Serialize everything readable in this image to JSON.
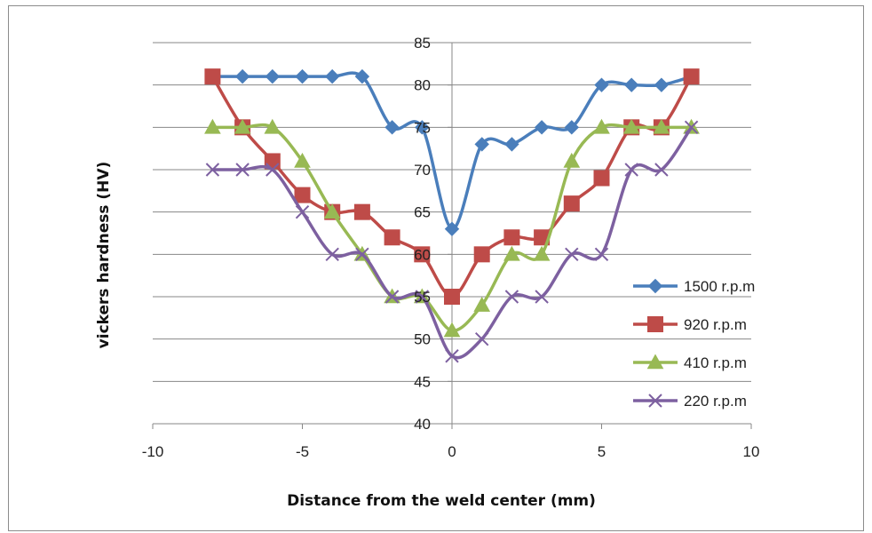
{
  "chart_data": {
    "type": "line",
    "xlabel": "Distance from the weld center (mm)",
    "ylabel": "vickers hardness (HV)",
    "xlim": [
      -10,
      10
    ],
    "ylim": [
      40,
      85
    ],
    "x_ticks": [
      -10,
      -5,
      0,
      5,
      10
    ],
    "y_ticks": [
      40,
      45,
      50,
      55,
      60,
      65,
      70,
      75,
      80,
      85
    ],
    "grid": "horizontal",
    "legend_position": "right",
    "x": [
      -8,
      -7,
      -6,
      -5,
      -4,
      -3,
      -2,
      -1,
      0,
      1,
      2,
      3,
      4,
      5,
      6,
      7,
      8
    ],
    "series": [
      {
        "name": "1500 r.p.m",
        "color": "#4a7ebb",
        "marker": "diamond",
        "values": [
          81,
          81,
          81,
          81,
          81,
          81,
          75,
          75,
          63,
          73,
          73,
          75,
          75,
          80,
          80,
          80,
          81
        ]
      },
      {
        "name": "920 r.p.m",
        "color": "#be4b48",
        "marker": "square",
        "values": [
          81,
          75,
          71,
          67,
          65,
          65,
          62,
          60,
          55,
          60,
          62,
          62,
          66,
          69,
          75,
          75,
          81
        ]
      },
      {
        "name": "410 r.p.m",
        "color": "#98b954",
        "marker": "triangle",
        "values": [
          75,
          75,
          75,
          71,
          65,
          60,
          55,
          55,
          51,
          54,
          60,
          60,
          71,
          75,
          75,
          75,
          75
        ]
      },
      {
        "name": "220 r.p.m",
        "color": "#7d60a0",
        "marker": "x",
        "values": [
          70,
          70,
          70,
          65,
          60,
          60,
          55,
          55,
          48,
          50,
          55,
          55,
          60,
          60,
          70,
          70,
          75
        ]
      }
    ]
  }
}
